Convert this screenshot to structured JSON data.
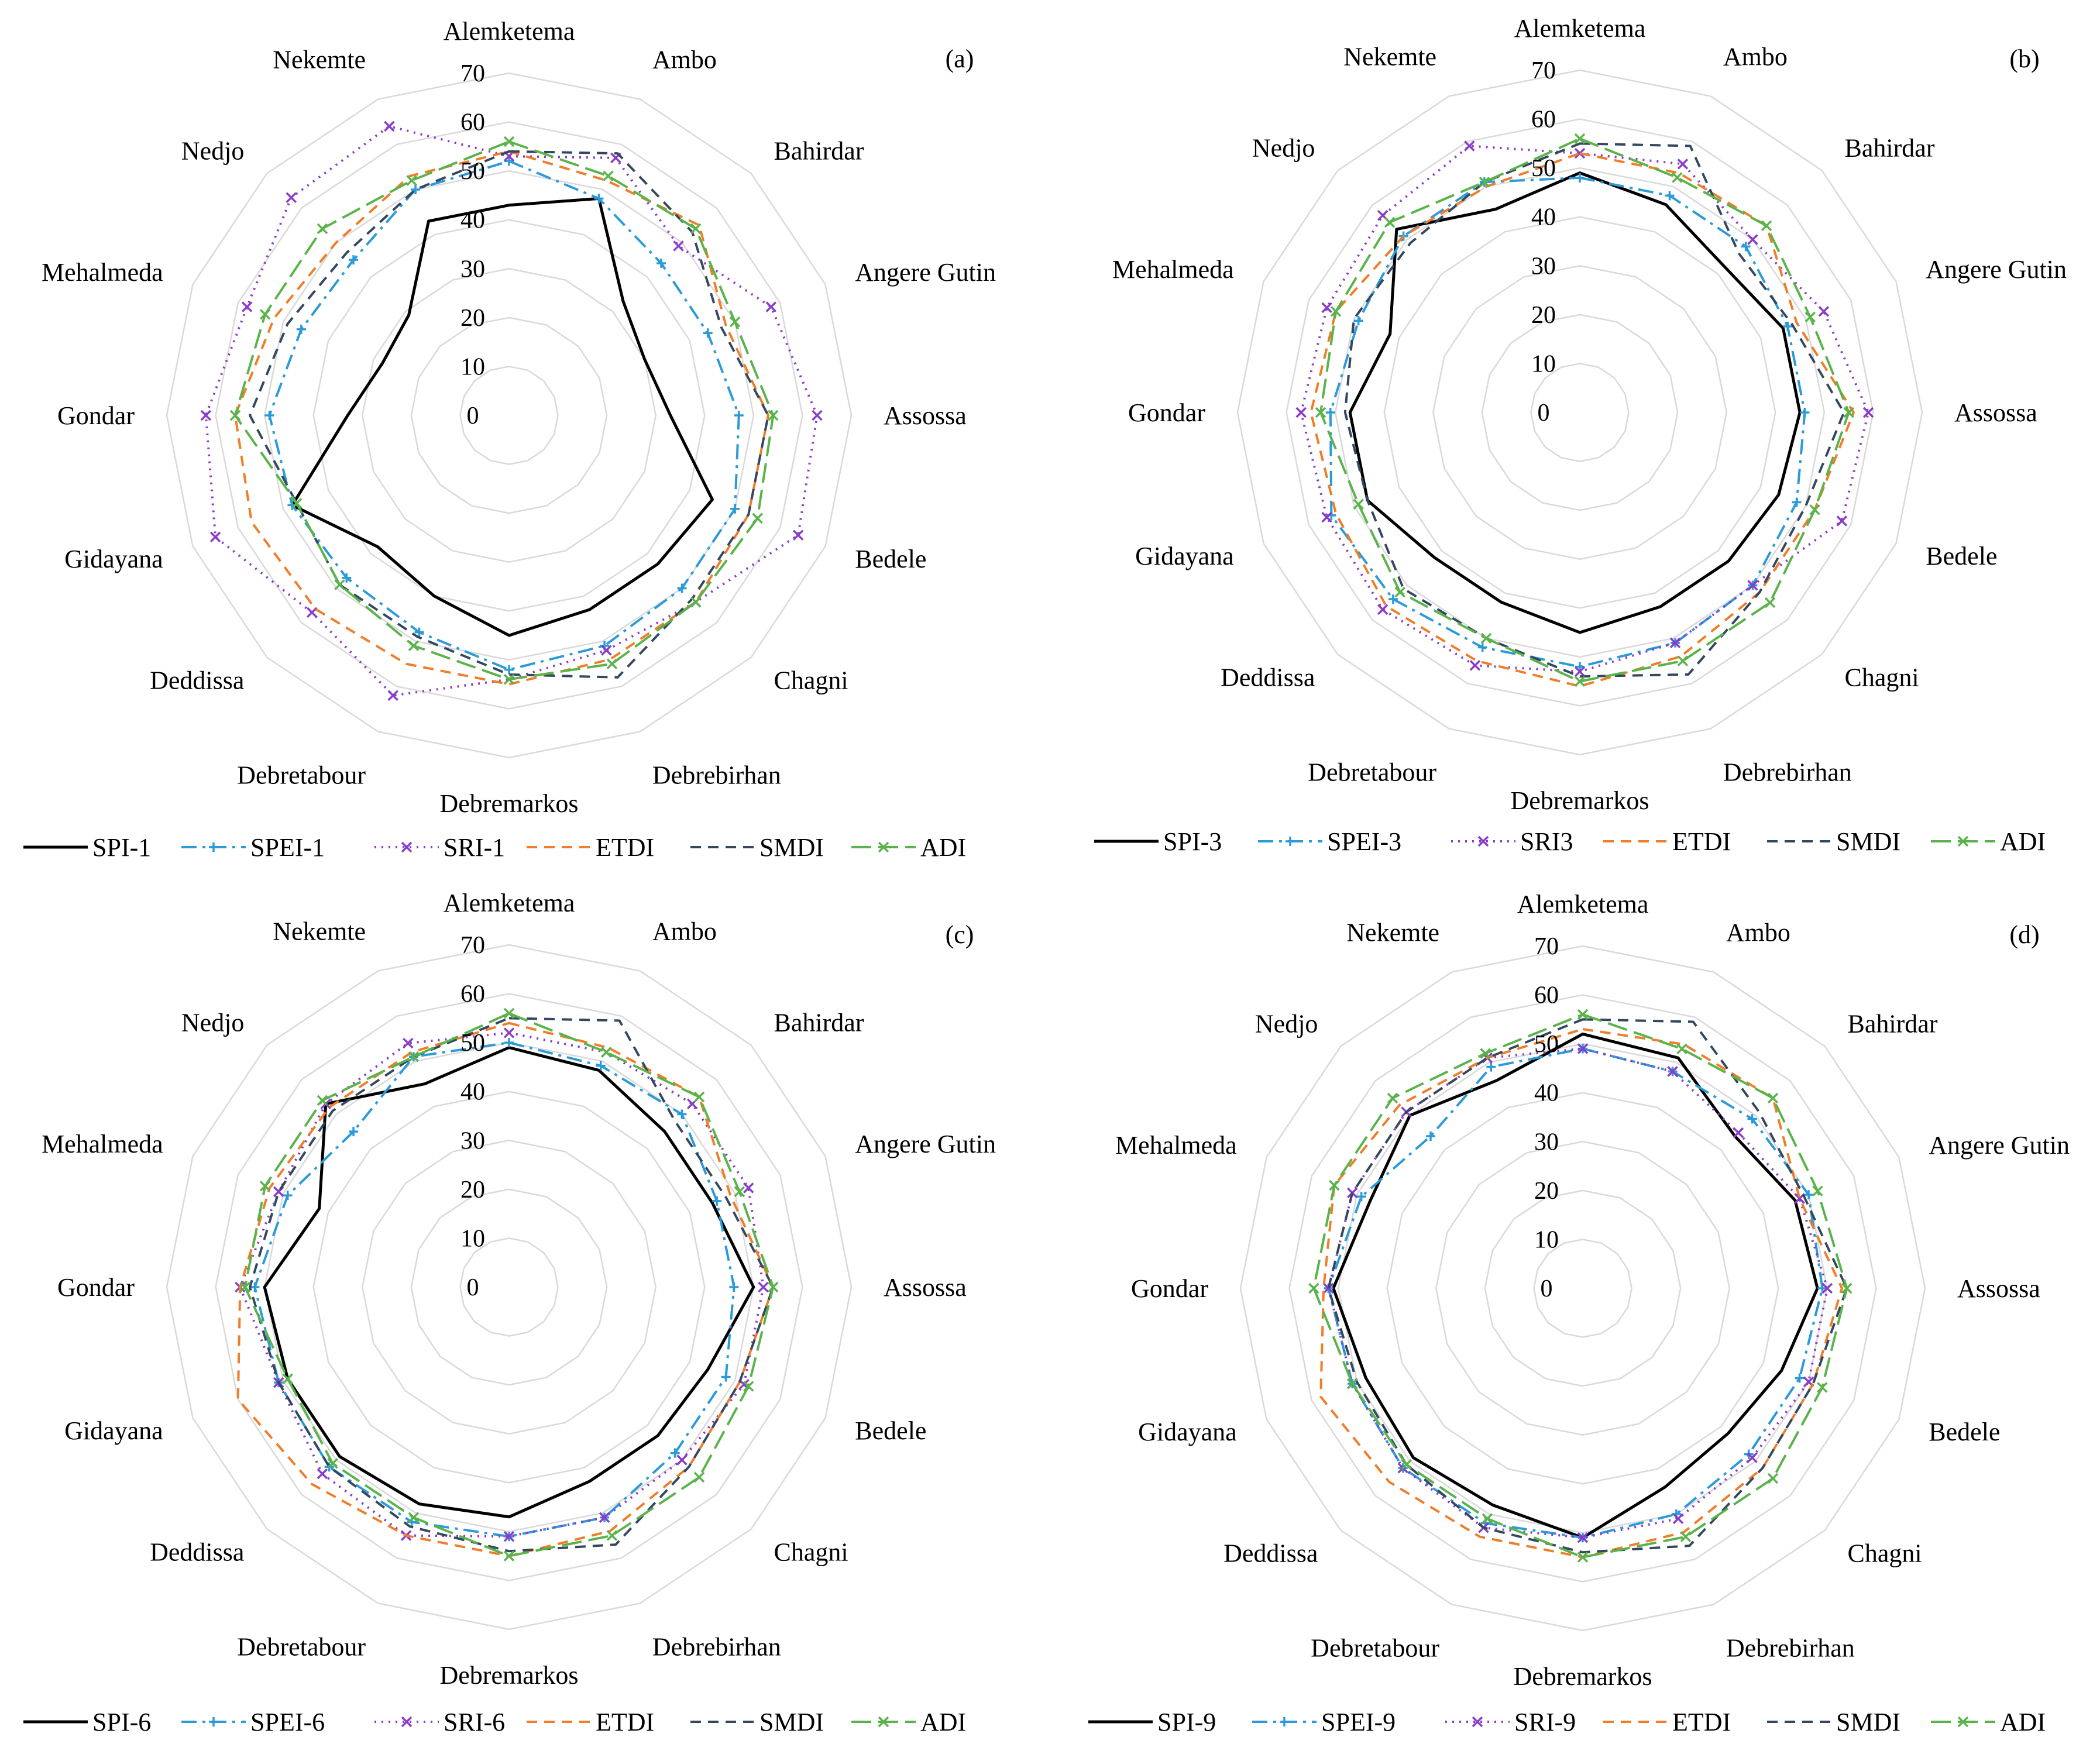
{
  "figure": {
    "stations": [
      "Alemketema",
      "Ambo",
      "Bahirdar",
      "Angere Gutin",
      "Assossa",
      "Bedele",
      "Chagni",
      "Debrebirhan",
      "Debremarkos",
      "Debretabour",
      "Deddissa",
      "Gidayana",
      "Gondar",
      "Mehalmeda",
      "Nedjo",
      "Nekemte"
    ],
    "axis_ticks": [
      0,
      10,
      20,
      30,
      40,
      50,
      60,
      70
    ],
    "axis_max": 70
  },
  "chart_data": [
    {
      "type": "radar",
      "panel_label": "(a)",
      "categories": [
        "Alemketema",
        "Ambo",
        "Bahirdar",
        "Angere Gutin",
        "Assossa",
        "Bedele",
        "Chagni",
        "Debrebirhan",
        "Debremarkos",
        "Debretabour",
        "Deddissa",
        "Gidayana",
        "Gondar",
        "Mehalmeda",
        "Nedjo",
        "Nekemte"
      ],
      "rlim": [
        0,
        70
      ],
      "series": [
        {
          "name": "SPI-1",
          "color": "#000000",
          "style": "solid",
          "marker": "none",
          "values": [
            43,
            48,
            33,
            30,
            33,
            45,
            43,
            43,
            45,
            40,
            38,
            48,
            33,
            28,
            29,
            43
          ]
        },
        {
          "name": "SPEI-1",
          "color": "#2a9ad8",
          "style": "dashdot",
          "marker": "plus",
          "values": [
            52,
            48,
            44,
            44,
            47,
            50,
            50,
            51,
            52,
            48,
            47,
            48,
            49,
            46,
            45,
            50
          ]
        },
        {
          "name": "SRI-1",
          "color": "#8a3cc8",
          "style": "dotted",
          "marker": "x",
          "values": [
            53,
            57,
            49,
            58,
            63,
            64,
            54,
            52,
            54,
            62,
            57,
            65,
            62,
            58,
            63,
            64
          ]
        },
        {
          "name": "ETDI",
          "color": "#ef7d29",
          "style": "dashed",
          "marker": "none",
          "values": [
            54,
            52,
            55,
            48,
            53,
            53,
            54,
            54,
            55,
            55,
            56,
            57,
            56,
            52,
            50,
            53
          ]
        },
        {
          "name": "SMDI",
          "color": "#33475f",
          "style": "dashed",
          "marker": "none",
          "values": [
            54,
            58,
            53,
            47,
            53,
            53,
            53,
            58,
            53,
            49,
            49,
            47,
            53,
            49,
            47,
            50
          ]
        },
        {
          "name": "ADI",
          "color": "#5ab34a",
          "style": "longdash",
          "marker": "x",
          "values": [
            56,
            53,
            54,
            50,
            54,
            55,
            54,
            55,
            54,
            51,
            49,
            47,
            56,
            54,
            54,
            52
          ]
        }
      ]
    },
    {
      "type": "radar",
      "panel_label": "(b)",
      "categories": [
        "Alemketema",
        "Ambo",
        "Bahirdar",
        "Angere Gutin",
        "Assossa",
        "Bedele",
        "Chagni",
        "Debrebirhan",
        "Debremarkos",
        "Debretabour",
        "Deddissa",
        "Gidayana",
        "Gondar",
        "Mehalmeda",
        "Nedjo",
        "Nekemte"
      ],
      "rlim": [
        0,
        70
      ],
      "series": [
        {
          "name": "SPI-3",
          "color": "#000000",
          "style": "solid",
          "marker": "none",
          "values": [
            49,
            46,
            42,
            45,
            45,
            44,
            43,
            43,
            45,
            42,
            42,
            47,
            47,
            42,
            53,
            45
          ]
        },
        {
          "name": "SPEI-3",
          "color": "#2a9ad8",
          "style": "dashdot",
          "marker": "plus",
          "values": [
            48,
            48,
            48,
            46,
            46,
            48,
            50,
            51,
            52,
            52,
            54,
            55,
            51,
            49,
            51,
            51
          ]
        },
        {
          "name": "SRI3",
          "color": "#8a3cc8",
          "style": "dotted",
          "marker": "x",
          "values": [
            53,
            55,
            50,
            54,
            59,
            58,
            50,
            51,
            53,
            56,
            57,
            56,
            57,
            56,
            57,
            59
          ]
        },
        {
          "name": "ETDI",
          "color": "#ef7d29",
          "style": "dashed",
          "marker": "none",
          "values": [
            53,
            53,
            54,
            48,
            56,
            52,
            52,
            54,
            56,
            55,
            56,
            54,
            55,
            54,
            51,
            50
          ]
        },
        {
          "name": "SMDI",
          "color": "#33475f",
          "style": "dashed",
          "marker": "none",
          "values": [
            55,
            59,
            46,
            47,
            54,
            50,
            52,
            58,
            54,
            50,
            51,
            47,
            48,
            50,
            49,
            51
          ]
        },
        {
          "name": "ADI",
          "color": "#5ab34a",
          "style": "longdash",
          "marker": "x",
          "values": [
            56,
            52,
            54,
            51,
            55,
            52,
            55,
            55,
            55,
            50,
            52,
            49,
            53,
            54,
            55,
            51
          ]
        }
      ]
    },
    {
      "type": "radar",
      "panel_label": "(c)",
      "categories": [
        "Alemketema",
        "Ambo",
        "Bahirdar",
        "Angere Gutin",
        "Assossa",
        "Bedele",
        "Chagni",
        "Debrebirhan",
        "Debremarkos",
        "Debretabour",
        "Deddissa",
        "Gidayana",
        "Gondar",
        "Mehalmeda",
        "Nedjo",
        "Nekemte"
      ],
      "rlim": [
        0,
        70
      ],
      "series": [
        {
          "name": "SPI-6",
          "color": "#000000",
          "style": "solid",
          "marker": "none",
          "values": [
            49,
            48,
            45,
            45,
            50,
            44,
            43,
            43,
            47,
            48,
            49,
            49,
            50,
            42,
            53,
            45
          ]
        },
        {
          "name": "SPEI-6",
          "color": "#2a9ad8",
          "style": "dashdot",
          "marker": "plus",
          "values": [
            50,
            49,
            50,
            46,
            46,
            48,
            48,
            51,
            51,
            52,
            52,
            51,
            52,
            49,
            45,
            51
          ]
        },
        {
          "name": "SRI-6",
          "color": "#8a3cc8",
          "style": "dotted",
          "marker": "x",
          "values": [
            52,
            52,
            53,
            53,
            52,
            52,
            50,
            51,
            51,
            55,
            54,
            51,
            55,
            51,
            53,
            54
          ]
        },
        {
          "name": "ETDI",
          "color": "#ef7d29",
          "style": "dashed",
          "marker": "none",
          "values": [
            54,
            53,
            55,
            49,
            54,
            51,
            52,
            54,
            55,
            55,
            57,
            60,
            55,
            53,
            52,
            52
          ]
        },
        {
          "name": "SMDI",
          "color": "#33475f",
          "style": "dashed",
          "marker": "none",
          "values": [
            55,
            59,
            48,
            48,
            54,
            51,
            52,
            57,
            54,
            53,
            52,
            51,
            53,
            51,
            51,
            51
          ]
        },
        {
          "name": "ADI",
          "color": "#5ab34a",
          "style": "longdash",
          "marker": "x",
          "values": [
            56,
            52,
            55,
            51,
            54,
            53,
            55,
            55,
            55,
            51,
            51,
            49,
            54,
            54,
            54,
            51
          ]
        }
      ]
    },
    {
      "type": "radar",
      "panel_label": "(d)",
      "categories": [
        "Alemketema",
        "Ambo",
        "Bahirdar",
        "Angere Gutin",
        "Assossa",
        "Bedele",
        "Chagni",
        "Debrebirhan",
        "Debremarkos",
        "Debretabour",
        "Deddissa",
        "Gidayana",
        "Gondar",
        "Mehalmeda",
        "Nedjo",
        "Nekemte"
      ],
      "rlim": [
        0,
        70
      ],
      "series": [
        {
          "name": "SPI-9",
          "color": "#000000",
          "style": "solid",
          "marker": "none",
          "values": [
            52,
            51,
            44,
            47,
            48,
            44,
            42,
            44,
            51,
            48,
            49,
            48,
            51,
            47,
            50,
            46
          ]
        },
        {
          "name": "SPEI-9",
          "color": "#2a9ad8",
          "style": "dashdot",
          "marker": "plus",
          "values": [
            49,
            48,
            49,
            50,
            49,
            48,
            48,
            50,
            51,
            52,
            52,
            51,
            52,
            49,
            44,
            49
          ]
        },
        {
          "name": "SRI-9",
          "color": "#8a3cc8",
          "style": "dotted",
          "marker": "x",
          "values": [
            49,
            48,
            45,
            48,
            50,
            50,
            49,
            51,
            51,
            53,
            52,
            51,
            52,
            51,
            51,
            51
          ]
        },
        {
          "name": "ETDI",
          "color": "#ef7d29",
          "style": "dashed",
          "marker": "none",
          "values": [
            53,
            54,
            55,
            48,
            53,
            51,
            52,
            54,
            55,
            55,
            56,
            58,
            53,
            55,
            53,
            51
          ]
        },
        {
          "name": "SMDI",
          "color": "#33475f",
          "style": "dashed",
          "marker": "none",
          "values": [
            55,
            59,
            51,
            49,
            54,
            51,
            52,
            57,
            54,
            53,
            51,
            50,
            52,
            51,
            51,
            51
          ]
        },
        {
          "name": "ADI",
          "color": "#5ab34a",
          "style": "longdash",
          "marker": "x",
          "values": [
            56,
            53,
            55,
            52,
            54,
            53,
            55,
            55,
            55,
            51,
            51,
            51,
            55,
            55,
            55,
            52
          ]
        }
      ]
    }
  ]
}
